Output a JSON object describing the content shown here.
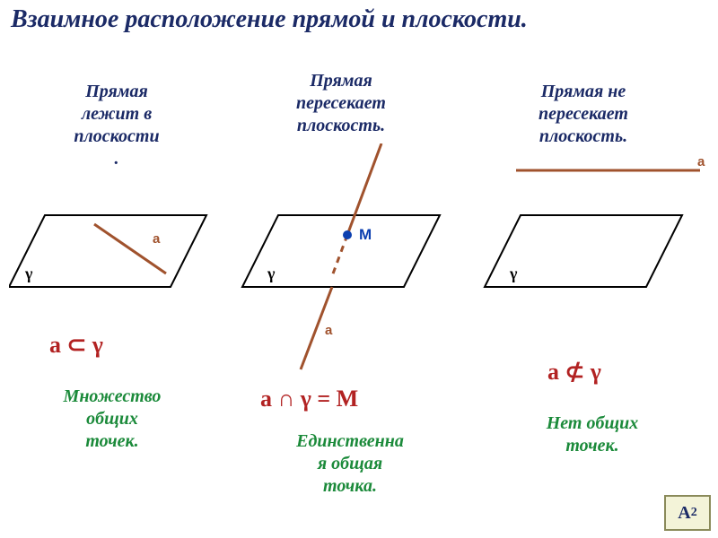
{
  "title": {
    "text": "Взаимное расположение прямой и плоскости.",
    "color": "#1b2a66",
    "fontsize": 28
  },
  "columns": [
    {
      "subtitle": "Прямая\nлежит в\nплоскости\n.",
      "relation": "a ⊂ γ",
      "relation_color": "#b22222",
      "description": "Множество\nобщих\nточек.",
      "desc_color": "#1b8a3a",
      "subtitle_color": "#1b2a66",
      "label_color": "#a0522d"
    },
    {
      "subtitle": "Прямая\nпересекает\nплоскость.",
      "relation": "a ∩ γ = M",
      "relation_color": "#b22222",
      "description": "Единственна\nя общая\nточка.",
      "desc_color": "#1b8a3a",
      "subtitle_color": "#1b2a66",
      "label_color": "#a0522d",
      "point_label": "М",
      "point_color": "#0b3fb0"
    },
    {
      "subtitle": "Прямая не\nпересекает\nплоскость.",
      "relation": "a ⊄ γ",
      "relation_color": "#b22222",
      "description": "Нет общих\nточек.",
      "desc_color": "#1b8a3a",
      "subtitle_color": "#1b2a66",
      "label_color": "#a0522d"
    }
  ],
  "a2_box": {
    "label": "А",
    "sub": "2",
    "color": "#1b2a66"
  },
  "style": {
    "line_color": "#a0522d",
    "line_width": 3,
    "plane_stroke": "#000000",
    "plane_stroke_width": 2,
    "gamma": "γ",
    "a_label": "а",
    "subtitle_fontsize": 20,
    "relation_fontsize": 26,
    "desc_fontsize": 20,
    "a2_fontsize": 20
  }
}
